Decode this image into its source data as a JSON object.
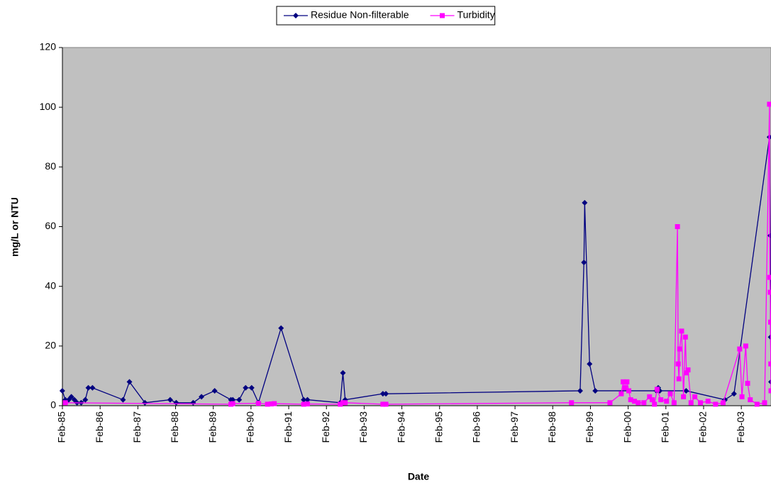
{
  "chart_data": {
    "type": "line",
    "x_label": "Date",
    "y_label": "mg/L or NTU",
    "legend": "top",
    "grid": false,
    "background": "#c0c0c0",
    "xlim": [
      1985.083,
      2003.87
    ],
    "ylim": [
      0,
      120
    ],
    "yticks": [
      0,
      20,
      40,
      60,
      80,
      100,
      120
    ],
    "xticks": [
      {
        "value": 1985.083,
        "label": "Feb-85"
      },
      {
        "value": 1986.083,
        "label": "Feb-86"
      },
      {
        "value": 1987.083,
        "label": "Feb-87"
      },
      {
        "value": 1988.083,
        "label": "Feb-88"
      },
      {
        "value": 1989.083,
        "label": "Feb-89"
      },
      {
        "value": 1990.083,
        "label": "Feb-90"
      },
      {
        "value": 1991.083,
        "label": "Feb-91"
      },
      {
        "value": 1992.083,
        "label": "Feb-92"
      },
      {
        "value": 1993.083,
        "label": "Feb-93"
      },
      {
        "value": 1994.083,
        "label": "Feb-94"
      },
      {
        "value": 1995.083,
        "label": "Feb-95"
      },
      {
        "value": 1996.083,
        "label": "Feb-96"
      },
      {
        "value": 1997.083,
        "label": "Feb-97"
      },
      {
        "value": 1998.083,
        "label": "Feb-98"
      },
      {
        "value": 1999.083,
        "label": "Feb-99"
      },
      {
        "value": 2000.083,
        "label": "Feb-00"
      },
      {
        "value": 2001.083,
        "label": "Feb-01"
      },
      {
        "value": 2002.083,
        "label": "Feb-02"
      },
      {
        "value": 2003.083,
        "label": "Feb-03"
      }
    ],
    "series": [
      {
        "name": "Residue Non-filterable",
        "color": "#000080",
        "marker": "diamond",
        "x": [
          1985.08,
          1985.16,
          1985.25,
          1985.32,
          1985.4,
          1985.47,
          1985.58,
          1985.69,
          1985.77,
          1985.88,
          1986.69,
          1986.86,
          1987.27,
          1987.94,
          1988.1,
          1988.55,
          1988.77,
          1989.12,
          1989.55,
          1989.6,
          1989.77,
          1989.94,
          1990.1,
          1990.28,
          1990.88,
          1991.48,
          1991.58,
          1992.45,
          1992.52,
          1992.58,
          1993.58,
          1993.66,
          1998.81,
          1998.91,
          1998.93,
          1999.06,
          1999.21,
          2000.83,
          2000.88,
          2000.92,
          2001.62,
          2002.65,
          2002.89,
          2003.83,
          2003.85,
          2003.86,
          2003.87
        ],
        "values": [
          5,
          2,
          2,
          3,
          2,
          1,
          1,
          2,
          6,
          6,
          2,
          8,
          1,
          2,
          1,
          1,
          3,
          5,
          2,
          2,
          2,
          6,
          6,
          1,
          26,
          2,
          2,
          1,
          11,
          2,
          4,
          4,
          5,
          48,
          68,
          14,
          5,
          5,
          6,
          5,
          5,
          2,
          4,
          90,
          57,
          23,
          8
        ]
      },
      {
        "name": "Turbidity",
        "color": "#ff00ff",
        "marker": "square",
        "x": [
          1985.16,
          1989.55,
          1989.6,
          1990.28,
          1990.52,
          1990.62,
          1990.7,
          1991.48,
          1991.58,
          1992.45,
          1992.52,
          1992.58,
          1993.58,
          1993.66,
          1998.58,
          1999.6,
          1999.9,
          1999.95,
          2000.0,
          2000.05,
          2000.1,
          2000.15,
          2000.25,
          2000.35,
          2000.5,
          2000.65,
          2000.72,
          2000.78,
          2000.85,
          2000.95,
          2001.1,
          2001.2,
          2001.3,
          2001.39,
          2001.41,
          2001.43,
          2001.45,
          2001.5,
          2001.55,
          2001.6,
          2001.63,
          2001.67,
          2001.75,
          2001.85,
          2002.0,
          2002.2,
          2002.4,
          2002.6,
          2003.04,
          2003.1,
          2003.2,
          2003.25,
          2003.32,
          2003.5,
          2003.7,
          2003.83,
          2003.84,
          2003.85,
          2003.86,
          2003.865,
          2003.87
        ],
        "values": [
          1,
          0.5,
          0.7,
          0.8,
          0.5,
          0.6,
          0.7,
          0.5,
          0.6,
          0.5,
          1,
          1,
          0.5,
          0.5,
          1,
          1,
          4,
          8,
          6,
          8,
          5,
          2,
          1.5,
          1,
          1,
          3,
          2,
          0.5,
          5.5,
          2,
          1.5,
          4,
          1,
          60,
          14,
          9,
          19,
          25,
          3,
          23,
          11,
          12,
          1,
          3,
          1,
          1.5,
          0.5,
          1,
          19,
          3,
          20,
          7.5,
          2,
          0.5,
          1,
          101,
          43,
          38,
          28,
          14,
          5
        ]
      }
    ]
  }
}
